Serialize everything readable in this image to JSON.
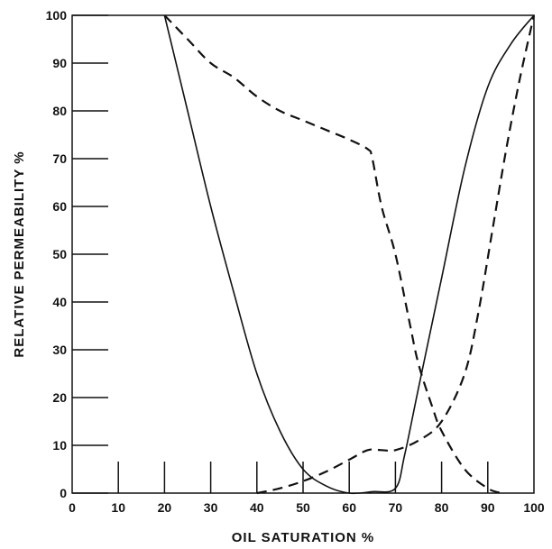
{
  "chart_data": {
    "type": "line",
    "xlabel": "OIL SATURATION %",
    "ylabel": "RELATIVE PERMEABILITY %",
    "xlim": [
      0,
      100
    ],
    "ylim": [
      0,
      100
    ],
    "x_ticks": [
      "0",
      "10",
      "20",
      "30",
      "40",
      "50",
      "60",
      "70",
      "80",
      "90",
      "100"
    ],
    "y_ticks": [
      "0",
      "10",
      "20",
      "30",
      "40",
      "50",
      "60",
      "70",
      "80",
      "90",
      "100"
    ],
    "grid": false,
    "series": [
      {
        "style": "solid",
        "points": [
          [
            20,
            100
          ],
          [
            25,
            80
          ],
          [
            30,
            60
          ],
          [
            35,
            42
          ],
          [
            40,
            25
          ],
          [
            45,
            13
          ],
          [
            50,
            5
          ],
          [
            55,
            1.5
          ],
          [
            60,
            0
          ],
          [
            65,
            0.3
          ],
          [
            70,
            1
          ],
          [
            72,
            8
          ],
          [
            75,
            22
          ],
          [
            80,
            45
          ],
          [
            85,
            68
          ],
          [
            90,
            85
          ],
          [
            95,
            94
          ],
          [
            100,
            100
          ]
        ]
      },
      {
        "style": "dashed",
        "points": [
          [
            20,
            100
          ],
          [
            25,
            95
          ],
          [
            30,
            90
          ],
          [
            35,
            87
          ],
          [
            40,
            83
          ],
          [
            45,
            80
          ],
          [
            50,
            78
          ],
          [
            55,
            76
          ],
          [
            60,
            74
          ],
          [
            64,
            72
          ],
          [
            65,
            70
          ],
          [
            67,
            60
          ],
          [
            70,
            50
          ],
          [
            73,
            36
          ],
          [
            75,
            27
          ],
          [
            78,
            18
          ],
          [
            80,
            13
          ],
          [
            85,
            5
          ],
          [
            90,
            1
          ],
          [
            93,
            0
          ]
        ]
      },
      {
        "style": "dashed",
        "points": [
          [
            40,
            0
          ],
          [
            45,
            1
          ],
          [
            50,
            2.5
          ],
          [
            55,
            4.5
          ],
          [
            60,
            7
          ],
          [
            64,
            9
          ],
          [
            67,
            9
          ],
          [
            70,
            9
          ],
          [
            75,
            11
          ],
          [
            80,
            15
          ],
          [
            85,
            25
          ],
          [
            88,
            38
          ],
          [
            91,
            55
          ],
          [
            94,
            72
          ],
          [
            97,
            87
          ],
          [
            100,
            100
          ]
        ]
      }
    ]
  }
}
